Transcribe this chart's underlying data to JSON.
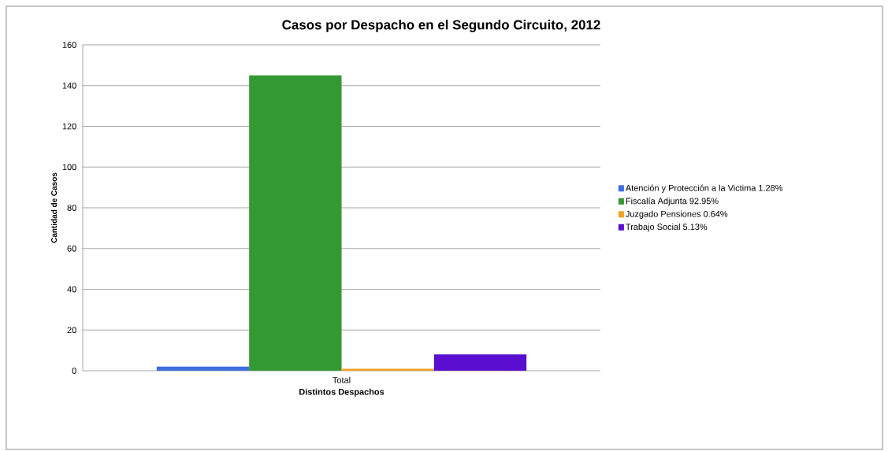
{
  "chart_data": {
    "type": "bar",
    "title": "Casos por Despacho en el Segundo Circuito, 2012",
    "xlabel": "Distintos Despachos",
    "ylabel": "Cantidad de Casos",
    "categories": [
      "Total"
    ],
    "series": [
      {
        "name": "Atención y Protección a la Victima 1.28%",
        "color": "#3d6fe0",
        "values": [
          2
        ]
      },
      {
        "name": "Fiscalía Adjunta 92.95%",
        "color": "#339933",
        "values": [
          145
        ]
      },
      {
        "name": "Juzgado Pensiones 0.64%",
        "color": "#f0a020",
        "values": [
          1
        ]
      },
      {
        "name": "Trabajo Social 5.13%",
        "color": "#5a0fd0",
        "values": [
          8
        ]
      }
    ],
    "ylim": [
      0,
      160
    ],
    "yticks": [
      0,
      20,
      40,
      60,
      80,
      100,
      120,
      140,
      160
    ],
    "grid": "y",
    "legend": "right"
  }
}
